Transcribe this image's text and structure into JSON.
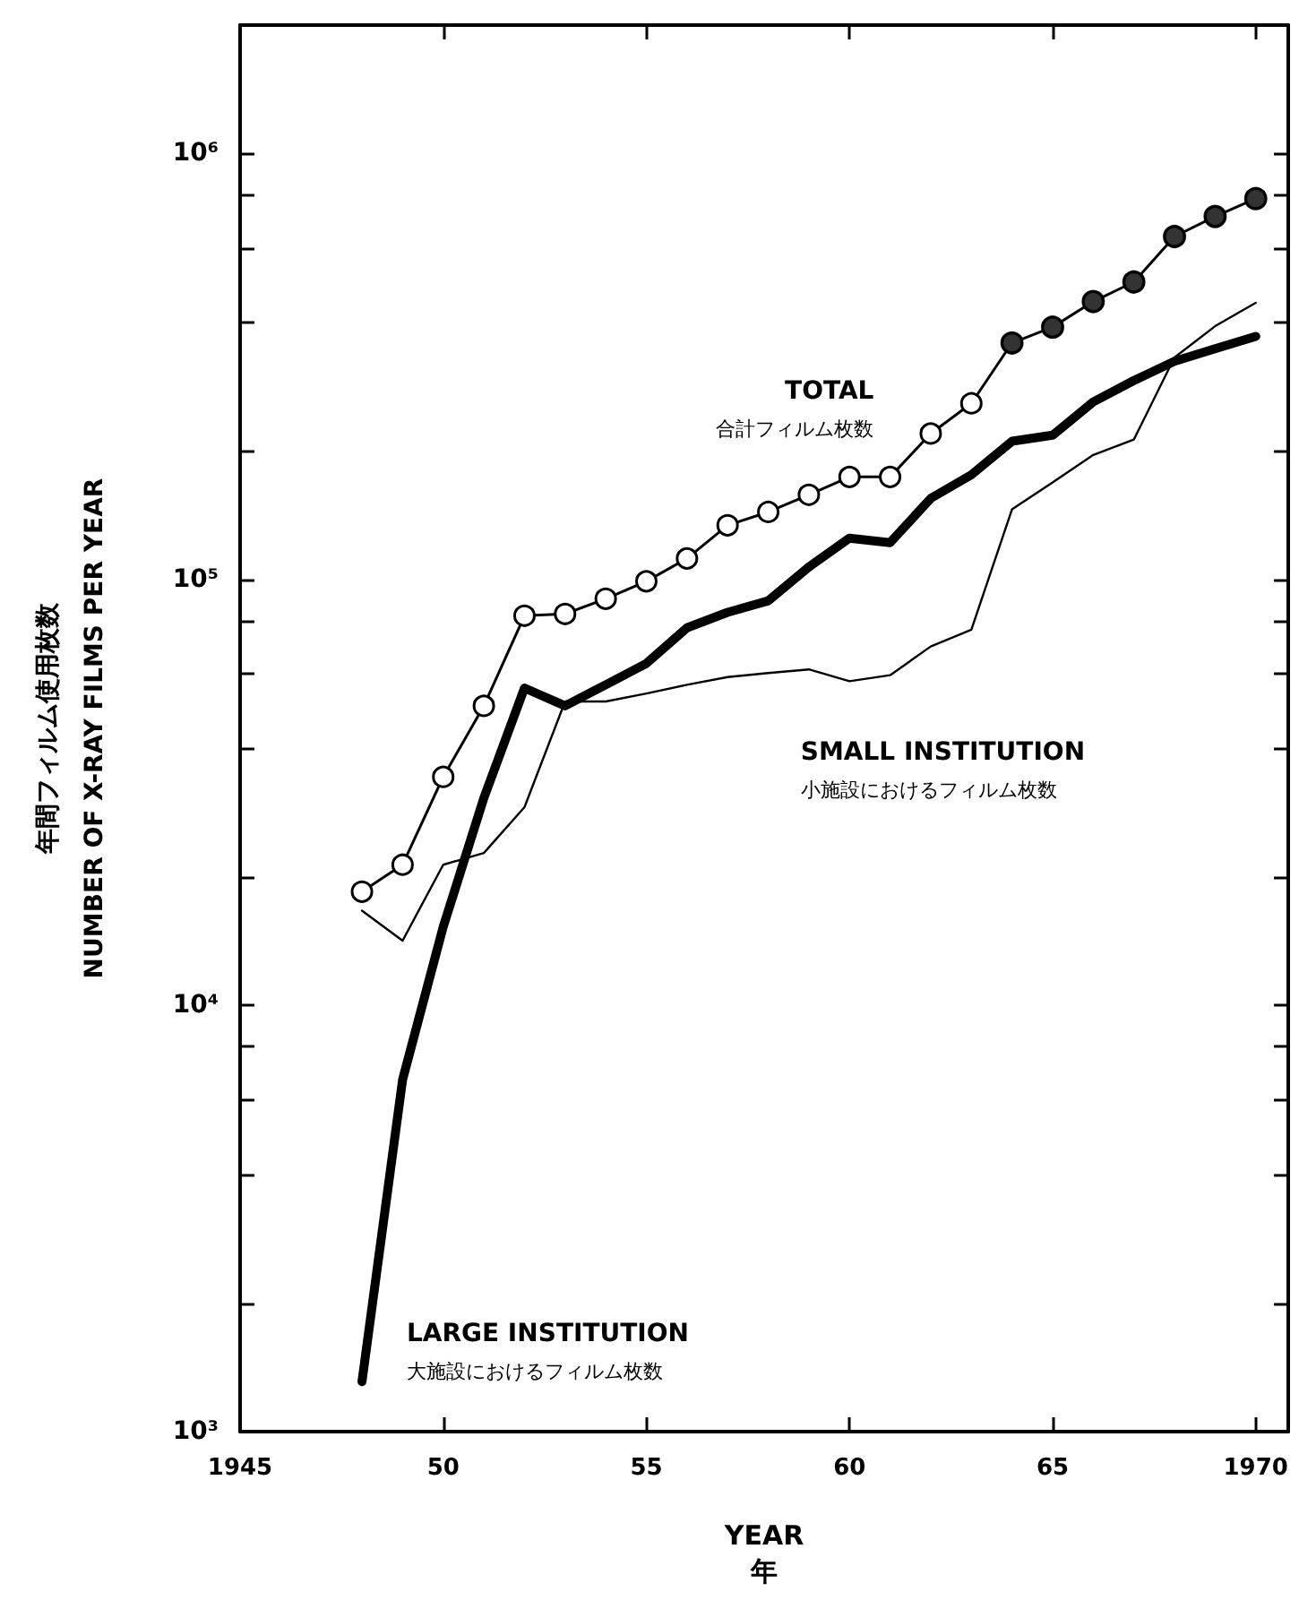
{
  "chart_data": {
    "type": "line",
    "xlabel": "YEAR\n年",
    "ylabel": "年間フィルム使用枚数\nNUMBER OF X-RAY FILMS PER YEAR",
    "x": [
      1948,
      1949,
      1950,
      1951,
      1952,
      1953,
      1954,
      1955,
      1956,
      1957,
      1958,
      1959,
      1960,
      1961,
      1962,
      1963,
      1964,
      1965,
      1966,
      1967,
      1968,
      1969,
      1970
    ],
    "series": [
      {
        "name": "TOTAL\n合計フィルム枚数",
        "color": "#000000",
        "marker": "circle",
        "values": [
          18500,
          21400,
          34400,
          50500,
          82200,
          83000,
          90100,
          99000,
          112000,
          134000,
          144000,
          158000,
          174000,
          174000,
          220000,
          259000,
          359000,
          391000,
          449000,
          499000,
          638000,
          711000,
          783000
        ]
      },
      {
        "name": "LARGE INSTITUTION\n大施設におけるフィルム枚数",
        "color": "#000000",
        "marker": "none",
        "values": [
          1310,
          6700,
          15300,
          30700,
          55600,
          50500,
          56600,
          63500,
          77000,
          83700,
          89100,
          107000,
          125000,
          122000,
          155000,
          176000,
          211000,
          218000,
          261000,
          293000,
          325000,
          348000,
          372000
        ]
      },
      {
        "name": "SMALL INSTITUTION\n小施設におけるフィルム枚数",
        "color": "#000000",
        "marker": "none",
        "values": [
          16700,
          14200,
          21400,
          22800,
          29200,
          51700,
          51700,
          54000,
          56600,
          59000,
          60300,
          61500,
          57700,
          59600,
          69600,
          76200,
          146000,
          169000,
          196000,
          213000,
          332000,
          393000,
          446000
        ]
      },
      {
        "type": "scatter",
        "color": "#000000",
        "marker": "circle",
        "x": [
          1964,
          1965,
          1966,
          1967,
          1968,
          1969,
          1970
        ],
        "values": [
          359000,
          391000,
          449000,
          499000,
          638000,
          711000,
          783000
        ]
      }
    ],
    "xlim": [
      1945,
      1970.8
    ],
    "xticks": [
      {
        "value": 1945,
        "label": "1945"
      },
      {
        "value": 1950,
        "label": "50"
      },
      {
        "value": 1955,
        "label": "55"
      },
      {
        "value": 1960,
        "label": "60"
      },
      {
        "value": 1965,
        "label": "65"
      },
      {
        "value": 1970,
        "label": "1970"
      }
    ],
    "ylim": [
      1000,
      2000000
    ],
    "yticks": [
      {
        "value": 1000,
        "label": "10³"
      },
      {
        "value": 2000,
        "label": null
      },
      {
        "value": 4000,
        "label": null
      },
      {
        "value": 6000,
        "label": null
      },
      {
        "value": 8000,
        "label": null
      },
      {
        "value": 10000,
        "label": "10⁴"
      },
      {
        "value": 20000,
        "label": null
      },
      {
        "value": 40000,
        "label": null
      },
      {
        "value": 60000,
        "label": null
      },
      {
        "value": 80000,
        "label": null
      },
      {
        "value": 100000,
        "label": "10⁵"
      },
      {
        "value": 200000,
        "label": null
      },
      {
        "value": 400000,
        "label": null
      },
      {
        "value": 600000,
        "label": null
      },
      {
        "value": 800000,
        "label": null
      },
      {
        "value": 1000000,
        "label": "10⁶"
      }
    ],
    "log": "y",
    "grid": false,
    "legend": false,
    "line_style": "solid"
  }
}
